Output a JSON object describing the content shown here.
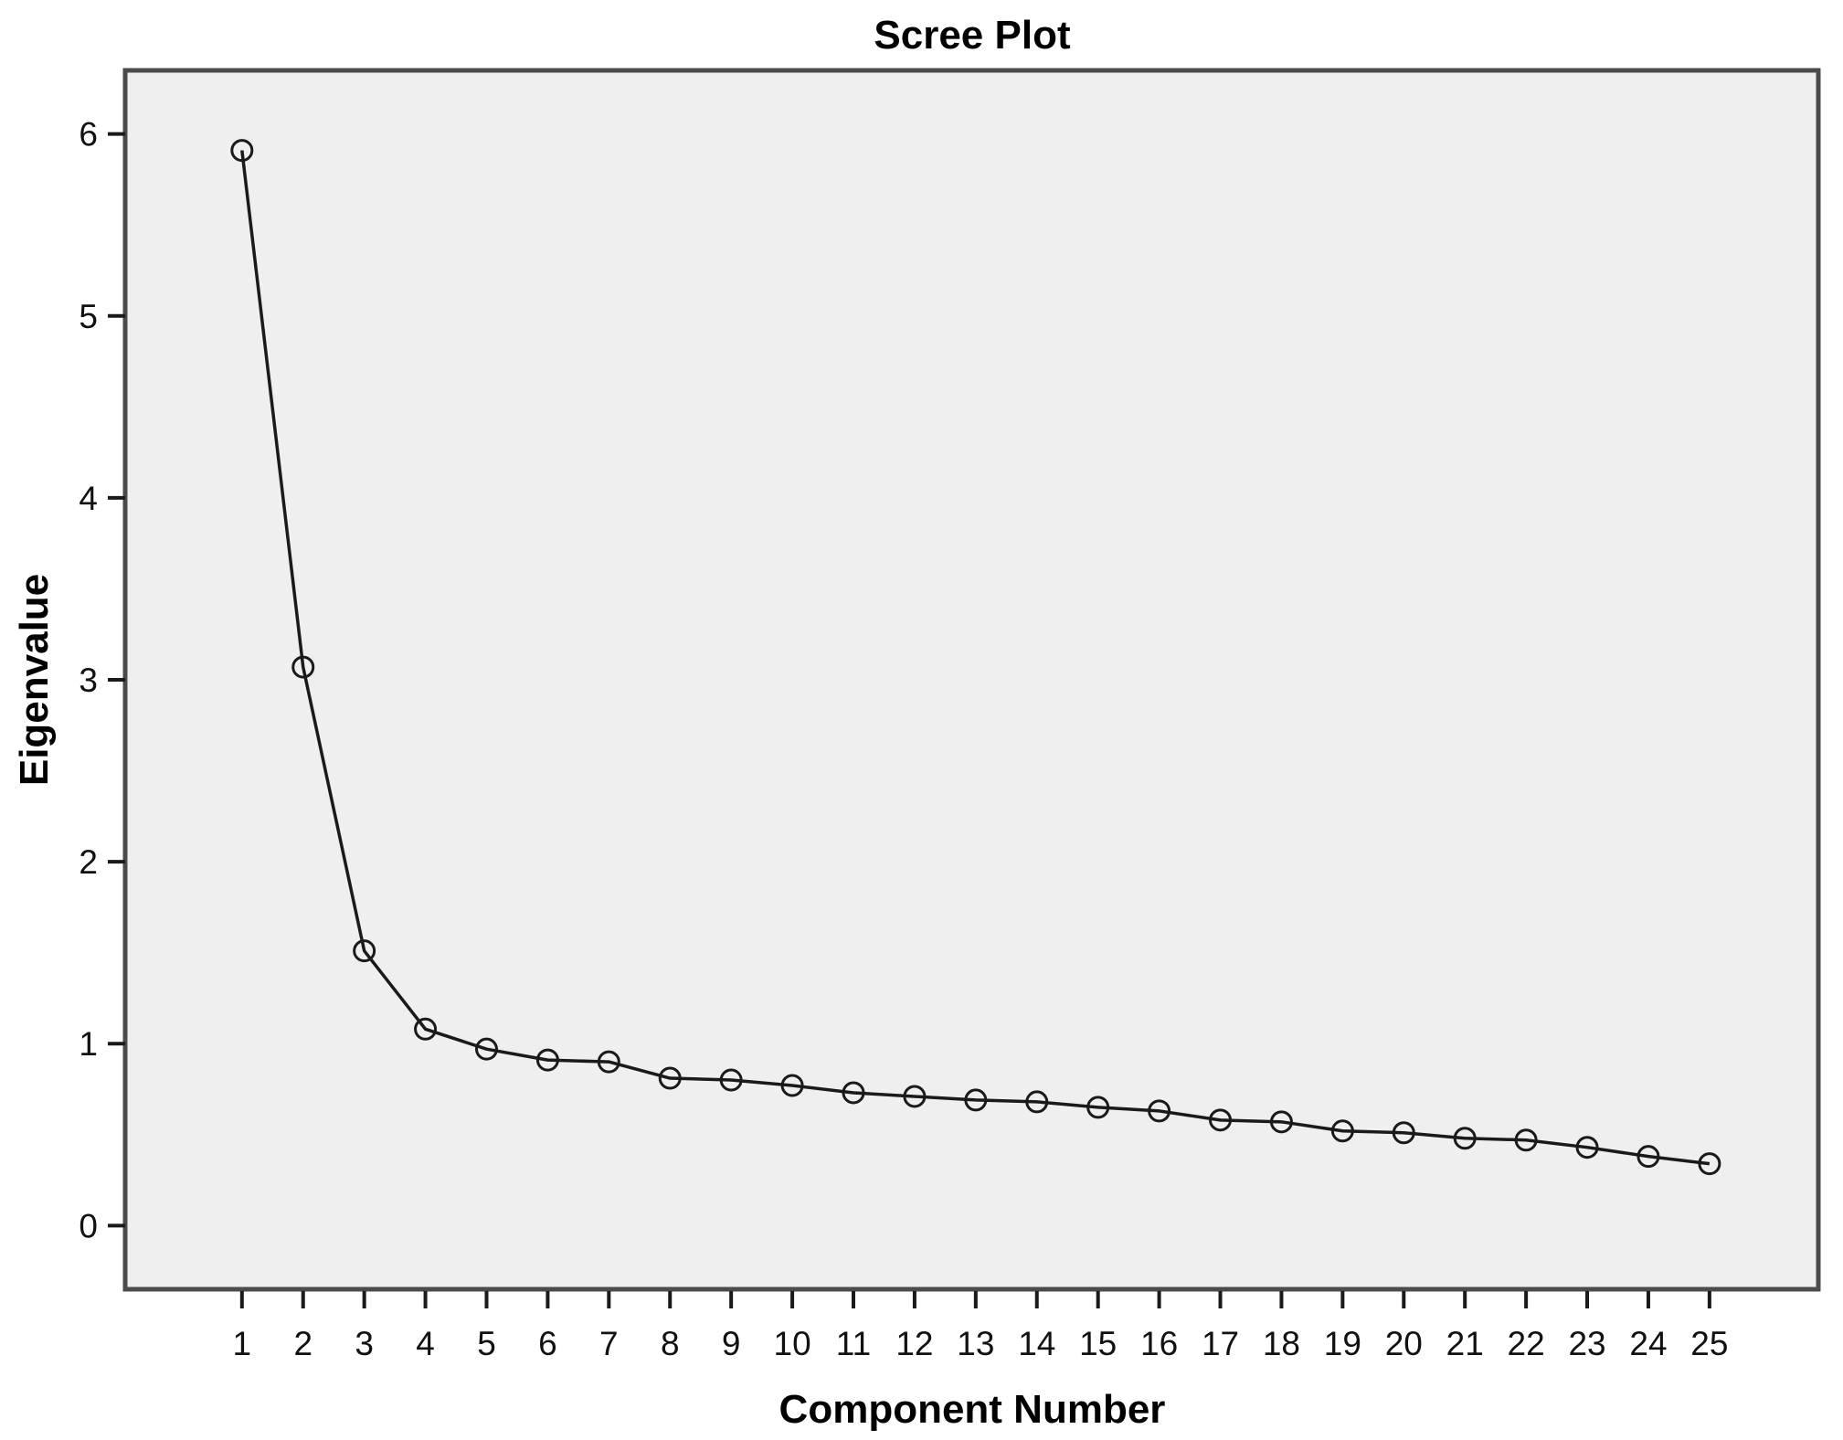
{
  "chart_data": {
    "type": "line",
    "title": "Scree Plot",
    "xlabel": "Component Number",
    "ylabel": "Eigenvalue",
    "x": [
      1,
      2,
      3,
      4,
      5,
      6,
      7,
      8,
      9,
      10,
      11,
      12,
      13,
      14,
      15,
      16,
      17,
      18,
      19,
      20,
      21,
      22,
      23,
      24,
      25
    ],
    "values": [
      5.91,
      3.07,
      1.51,
      1.08,
      0.97,
      0.91,
      0.9,
      0.81,
      0.8,
      0.77,
      0.73,
      0.71,
      0.69,
      0.68,
      0.65,
      0.63,
      0.58,
      0.57,
      0.52,
      0.51,
      0.48,
      0.47,
      0.43,
      0.38,
      0.34
    ],
    "xticks": [
      1,
      2,
      3,
      4,
      5,
      6,
      7,
      8,
      9,
      10,
      11,
      12,
      13,
      14,
      15,
      16,
      17,
      18,
      19,
      20,
      21,
      22,
      23,
      24,
      25
    ],
    "yticks": [
      0,
      1,
      2,
      3,
      4,
      5,
      6
    ],
    "xlim": [
      -0.91,
      26.78
    ],
    "ylim": [
      -0.35,
      6.35
    ],
    "grid": false,
    "legend_position": "none",
    "marker": "open-circle",
    "colors": {
      "line": "#1a1a1a",
      "marker_stroke": "#1a1a1a",
      "plot_bg": "#efefef",
      "page_bg": "#ffffff",
      "border": "#4b4b4b",
      "tick": "#1a1a1a",
      "text": "#000000"
    }
  }
}
